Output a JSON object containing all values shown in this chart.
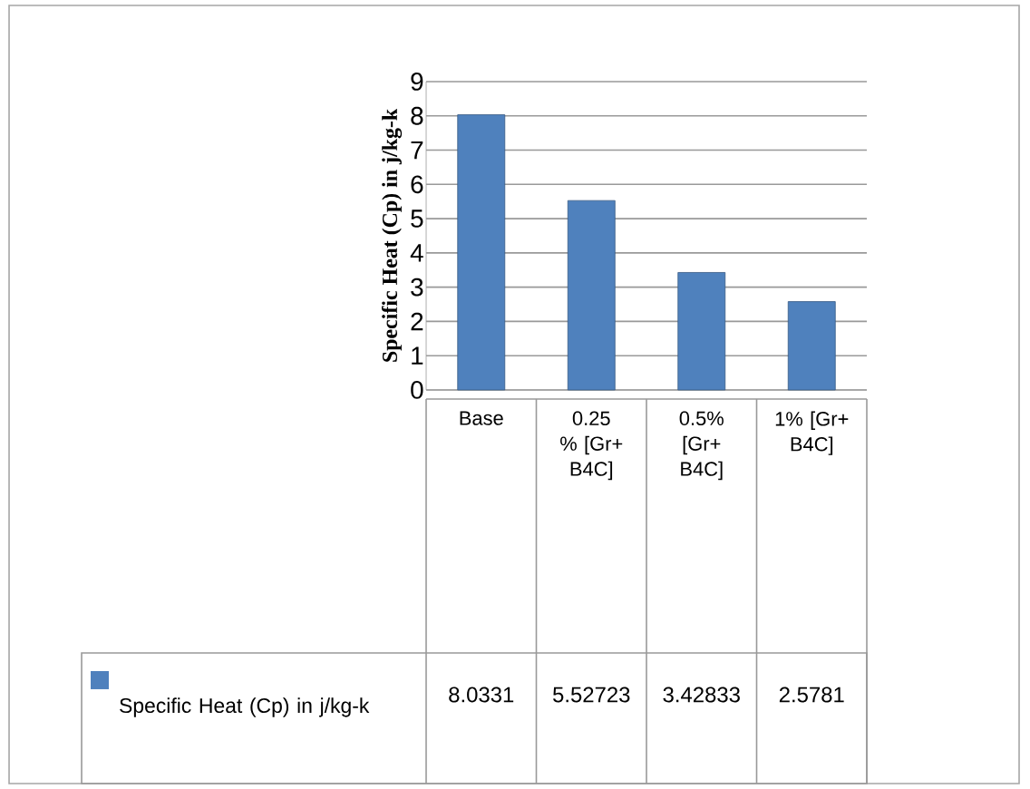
{
  "chart_data": {
    "type": "bar",
    "ylabel": "Specific Heat (Cp) in j/kg-k",
    "categories": [
      "Base",
      "0.25 % [Gr+ B4C]",
      "0.5% [Gr+ B4C]",
      "1% [Gr+ B4C]"
    ],
    "series": [
      {
        "name": "Specific Heat (Cp) in j/kg-k",
        "color": "#4f81bd",
        "values": [
          8.0331,
          5.52723,
          3.42833,
          2.5781
        ],
        "value_labels": [
          "8.0331",
          "5.52723",
          "3.42833",
          "2.5781"
        ]
      }
    ],
    "ylim": [
      0,
      9
    ],
    "yticks": [
      0,
      1,
      2,
      3,
      4,
      5,
      6,
      7,
      8,
      9
    ],
    "grid": "y",
    "legend": "bottom"
  }
}
